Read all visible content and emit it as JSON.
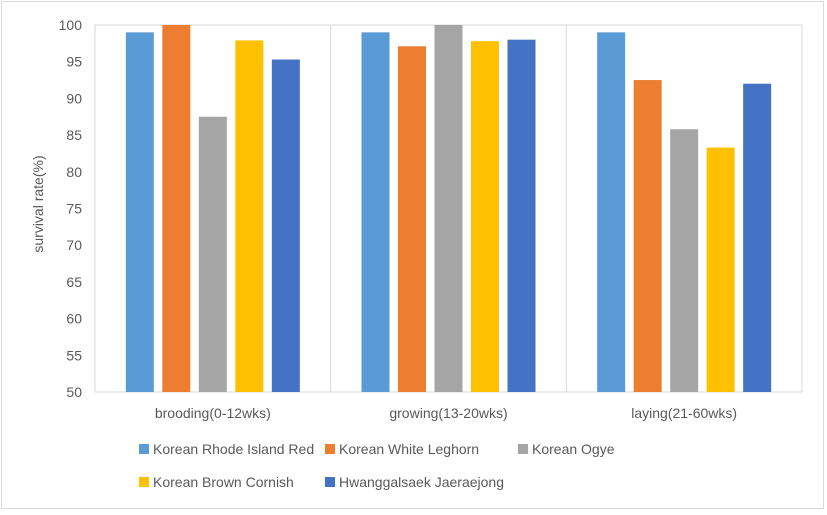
{
  "chart_data": {
    "type": "bar",
    "ylabel": "survival rate(%)",
    "ylim": [
      50,
      100
    ],
    "yticks": [
      50,
      55,
      60,
      65,
      70,
      75,
      80,
      85,
      90,
      95,
      100
    ],
    "grid": "vertical lines between categories",
    "legend_position": "bottom",
    "categories": [
      "brooding(0-12wks)",
      "growing(13-20wks)",
      "laying(21-60wks)"
    ],
    "series": [
      {
        "name": "Korean Rhode Island Red",
        "color": "#5b9bd5",
        "values": [
          99.0,
          99.0,
          99.0
        ]
      },
      {
        "name": "Korean White Leghorn",
        "color": "#ed7d31",
        "values": [
          100.0,
          97.1,
          92.5
        ]
      },
      {
        "name": "Korean Ogye",
        "color": "#a5a5a5",
        "values": [
          87.5,
          100.0,
          85.8
        ]
      },
      {
        "name": "Korean Brown Cornish",
        "color": "#ffc000",
        "values": [
          97.9,
          97.8,
          83.3
        ]
      },
      {
        "name": "Hwanggalsaek Jaeraejong",
        "color": "#4472c4",
        "values": [
          95.3,
          98.0,
          92.0
        ]
      }
    ]
  }
}
